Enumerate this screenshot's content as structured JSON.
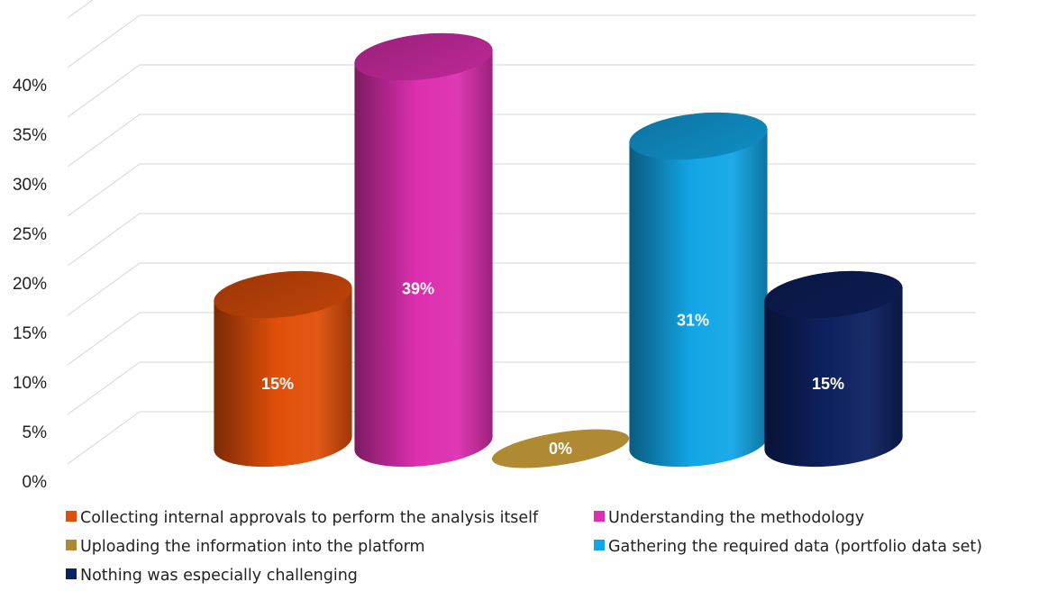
{
  "chart_data": {
    "type": "bar",
    "style": "3d-cylinder",
    "categories": [
      "Collecting internal approvals to perform the analysis itself",
      "Understanding the methodology",
      "Uploading the information into the platform",
      "Gathering the required data (portfolio data set)",
      "Nothing was especially challenging"
    ],
    "values": [
      15,
      39,
      0,
      31,
      15
    ],
    "data_labels": [
      "15%",
      "39%",
      "0%",
      "31%",
      "15%"
    ],
    "colors": [
      "#E04F0A",
      "#DD2FB0",
      "#B08A32",
      "#12A6E6",
      "#0E2160"
    ],
    "title": "",
    "xlabel": "",
    "ylabel": "",
    "ylim": [
      0,
      45
    ],
    "yticks": [
      "0%",
      "5%",
      "10%",
      "15%",
      "20%",
      "25%",
      "30%",
      "35%",
      "40%"
    ],
    "grid": true,
    "legend_position": "bottom"
  }
}
